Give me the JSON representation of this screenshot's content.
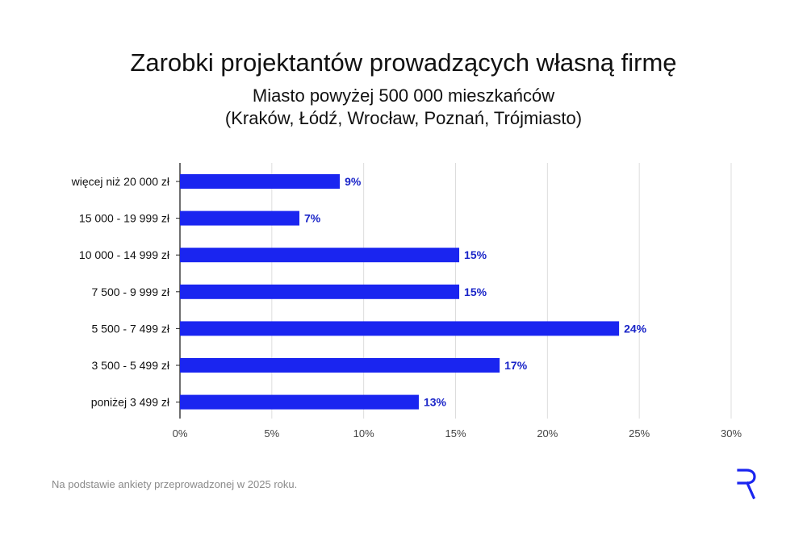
{
  "title": "Zarobki projektantów prowadzących własną firmę",
  "subtitle_line1": "Miasto powyżej 500 000 mieszkańców",
  "subtitle_line2": "(Kraków, Łódź, Wrocław, Poznań, Trójmiasto)",
  "footnote": "Na podstawie ankiety przeprowadzonej w 2025 roku.",
  "logo_icon": "r-logo-icon",
  "colors": {
    "bar": "#1a25f0",
    "label": "#1a25c8",
    "grid": "#dddddd"
  },
  "chart_data": {
    "type": "bar",
    "orientation": "horizontal",
    "categories": [
      "więcej niż 20 000 zł",
      "15 000 - 19 999 zł",
      "10 000 - 14 999 zł",
      "7 500 - 9 999 zł",
      "5 500 - 7 499 zł",
      "3 500 - 5 499 zł",
      "poniżej 3 499 zł"
    ],
    "values": [
      8.7,
      6.5,
      15.2,
      15.2,
      23.9,
      17.4,
      13.0
    ],
    "data_labels": [
      "9%",
      "7%",
      "15%",
      "15%",
      "24%",
      "17%",
      "13%"
    ],
    "xlim": [
      0,
      30
    ],
    "xticks": [
      "0%",
      "5%",
      "10%",
      "15%",
      "20%",
      "25%",
      "30%"
    ],
    "xlabel": "",
    "ylabel": "",
    "grid": true
  }
}
